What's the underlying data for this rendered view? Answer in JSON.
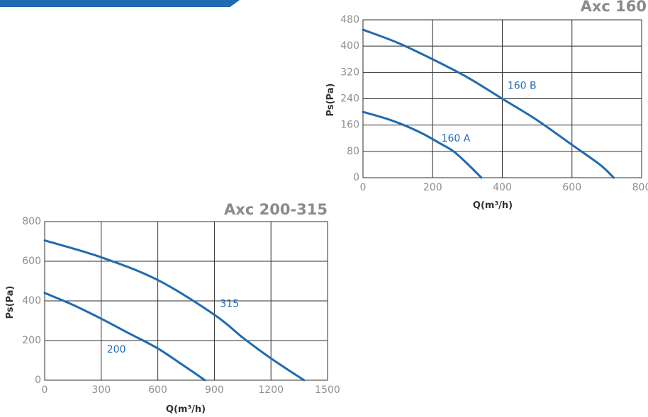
{
  "brand_color": "#1f6ab0",
  "chart_data": [
    {
      "id": "axc160",
      "type": "line",
      "title": "Axc 160",
      "xlabel": "Q(m³/h)",
      "ylabel": "Ps(Pa)",
      "xlim": [
        0,
        800
      ],
      "ylim": [
        0,
        480
      ],
      "xticks": [
        0,
        200,
        400,
        600,
        800
      ],
      "xtick_labels": [
        "0",
        "200",
        "400",
        "600",
        "800"
      ],
      "yticks": [
        0,
        80,
        160,
        240,
        320,
        400,
        480
      ],
      "ytick_labels": [
        "0",
        "80",
        "160",
        "240",
        "320",
        "400",
        "480"
      ],
      "grid": true,
      "series": [
        {
          "name": "160 A",
          "x": [
            0,
            80,
            160,
            220,
            260,
            300,
            340
          ],
          "y": [
            200,
            175,
            140,
            105,
            80,
            42,
            0
          ],
          "label_at": [
            225,
            110
          ]
        },
        {
          "name": "160 B",
          "x": [
            0,
            100,
            200,
            300,
            400,
            500,
            600,
            680,
            720
          ],
          "y": [
            450,
            410,
            360,
            305,
            240,
            175,
            100,
            40,
            0
          ],
          "label_at": [
            415,
            270
          ]
        }
      ]
    },
    {
      "id": "axc200",
      "type": "line",
      "title": "Axc 200-315",
      "xlabel": "Q(m³/h)",
      "ylabel": "Ps(Pa)",
      "xlim": [
        0,
        1500
      ],
      "ylim": [
        0,
        800
      ],
      "xticks": [
        0,
        300,
        600,
        900,
        1200,
        1500
      ],
      "xtick_labels": [
        "0",
        "300",
        "600",
        "900",
        "1200",
        "1500"
      ],
      "yticks": [
        0,
        200,
        400,
        600,
        800
      ],
      "ytick_labels": [
        "0",
        "200",
        "400",
        "600",
        "800"
      ],
      "grid": true,
      "series": [
        {
          "name": "200",
          "x": [
            0,
            150,
            300,
            450,
            600,
            750,
            850
          ],
          "y": [
            440,
            380,
            310,
            235,
            160,
            65,
            0
          ],
          "label_at": [
            330,
            140
          ]
        },
        {
          "name": "315",
          "x": [
            0,
            300,
            600,
            900,
            1050,
            1200,
            1375
          ],
          "y": [
            705,
            620,
            505,
            330,
            215,
            110,
            0
          ],
          "label_at": [
            930,
            370
          ]
        }
      ]
    }
  ]
}
